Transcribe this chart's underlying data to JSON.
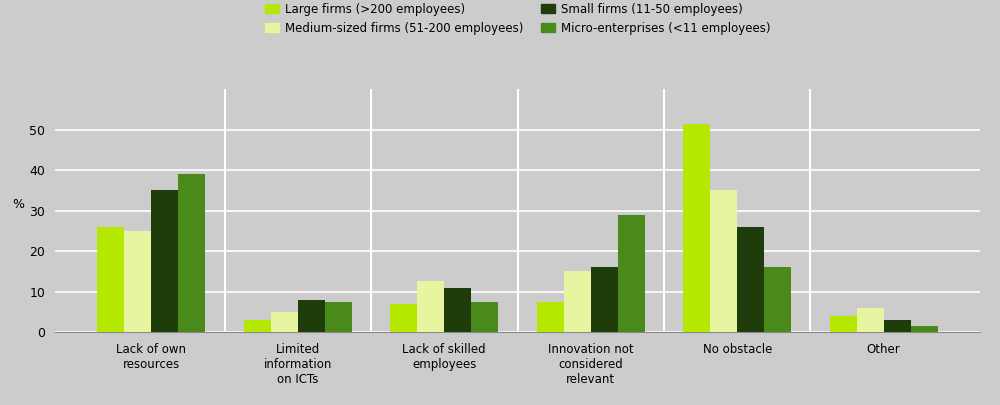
{
  "categories": [
    "Lack of own\nresources",
    "Limited\ninformation\non ICTs",
    "Lack of skilled\nemployees",
    "Innovation not\nconsidered\nrelevant",
    "No obstacle",
    "Other"
  ],
  "series": {
    "Large firms (>200 employees)": [
      26,
      3,
      7,
      7.5,
      51.5,
      4
    ],
    "Medium-sized firms (51-200 employees)": [
      25,
      5,
      12.5,
      15,
      35,
      6
    ],
    "Small firms (11-50 employees)": [
      35,
      8,
      11,
      16,
      26,
      3
    ],
    "Micro-enterprises (<11 employees)": [
      39,
      7.5,
      7.5,
      29,
      16,
      1.5
    ]
  },
  "colors": {
    "Large firms (>200 employees)": "#b5e800",
    "Medium-sized firms (51-200 employees)": "#e8f5a0",
    "Small firms (11-50 employees)": "#1e3d0a",
    "Micro-enterprises (<11 employees)": "#4a8a1a"
  },
  "legend_order": [
    "Large firms (>200 employees)",
    "Medium-sized firms (51-200 employees)",
    "Small firms (11-50 employees)",
    "Micro-enterprises (<11 employees)"
  ],
  "legend_ncol": 2,
  "legend_row1": [
    "Large firms (>200 employees)",
    "Medium-sized firms (51-200 employees)"
  ],
  "legend_row2": [
    "Small firms (11-50 employees)",
    "Micro-enterprises (<11 employees)"
  ],
  "ylabel": "%",
  "ylim": [
    0,
    60
  ],
  "yticks": [
    0,
    10,
    20,
    30,
    40,
    50
  ],
  "background_color": "#cccccc",
  "plot_bg_color": "#cccccc",
  "grid_color": "#ffffff"
}
